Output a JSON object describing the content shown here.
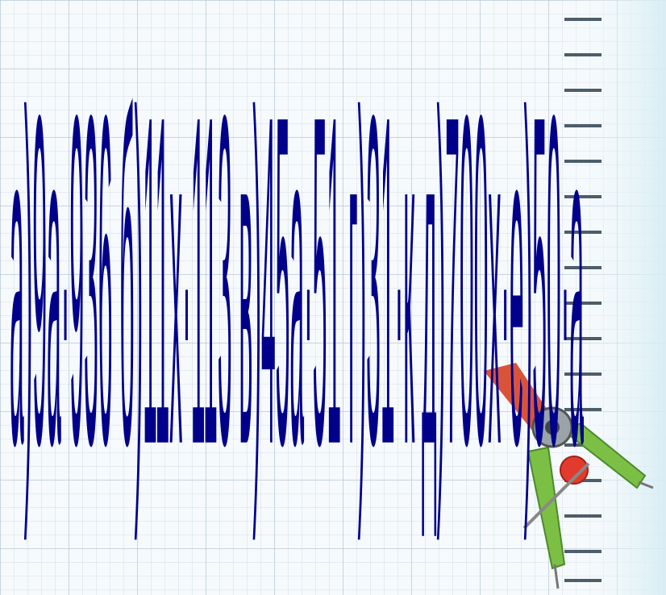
{
  "slide": {
    "expression": "а)9а·936 б)11х·113 в)45а·51 г)31·к д)700х·е)50·а"
  }
}
